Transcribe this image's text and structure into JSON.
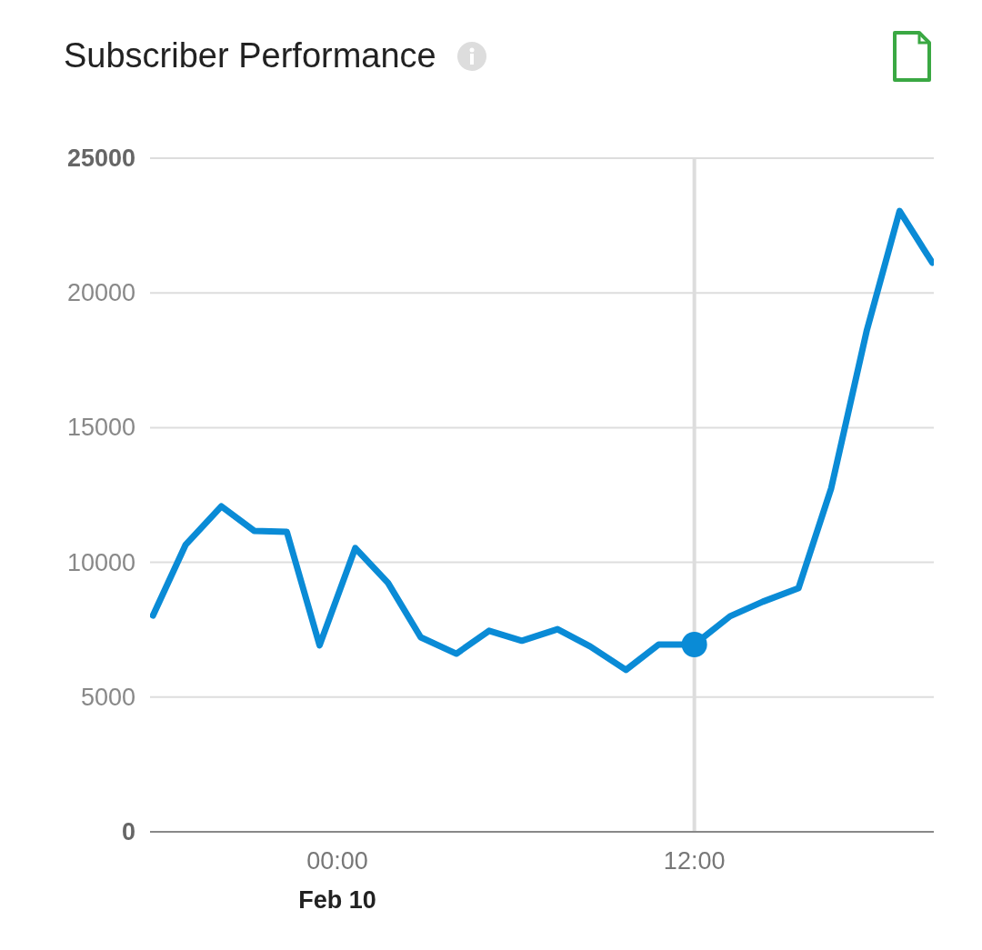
{
  "chart_data": {
    "type": "line",
    "title": "Subscriber Performance",
    "xlim": [
      -6.3,
      20.05
    ],
    "xticks": [
      {
        "value": 0,
        "label": "00:00"
      },
      {
        "value": 12,
        "label": "12:00"
      }
    ],
    "ylim": [
      0,
      25000
    ],
    "yticks": [
      0,
      5000,
      10000,
      15000,
      20000,
      25000
    ],
    "grid": "y",
    "legend": false,
    "line_style": "solid",
    "ref_lines": [
      {
        "axis": "x",
        "value": 12,
        "label": null,
        "color": "#dddddd"
      }
    ],
    "annotations": [
      "Feb 10"
    ],
    "series": [
      {
        "color": "#0a8bd6",
        "marker": "none",
        "x": [
          -6.2,
          -5.1,
          -3.9,
          -2.8,
          -1.7,
          -0.6,
          0.6,
          1.7,
          2.8,
          4.0,
          5.1,
          6.2,
          7.4,
          8.5,
          9.7,
          10.8,
          12.0,
          13.2,
          14.3,
          15.5,
          16.6,
          17.8,
          18.9,
          20.0
        ],
        "values": [
          8030,
          10660,
          12080,
          11170,
          11130,
          6920,
          10530,
          9240,
          7220,
          6610,
          7460,
          7090,
          7520,
          6880,
          6010,
          6950,
          6950,
          8000,
          8540,
          9040,
          12750,
          18620,
          23040,
          21120
        ]
      },
      {
        "type": "scatter",
        "color": "#0a8bd6",
        "marker": "circle",
        "x": [
          12.0
        ],
        "values": [
          6950
        ]
      }
    ]
  }
}
